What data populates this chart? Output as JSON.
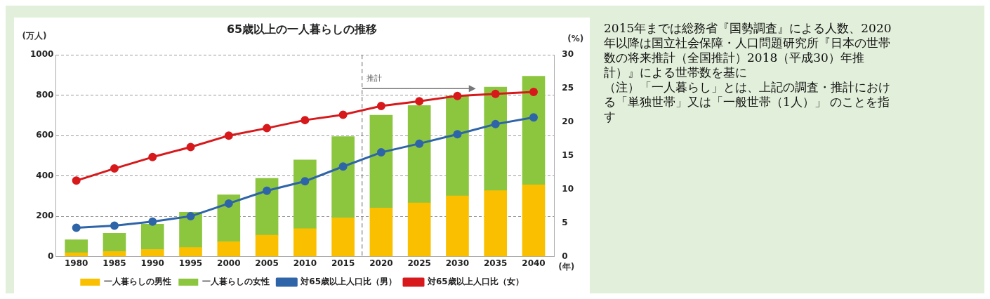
{
  "chart_data": {
    "type": "bar",
    "title": "65歳以上の一人暮らしの推移",
    "xlabel": "(年)",
    "ylabel": "(万人)",
    "y2label": "(%)",
    "x": [
      1980,
      1985,
      1990,
      1995,
      2000,
      2005,
      2010,
      2015,
      2020,
      2025,
      2030,
      2035,
      2040
    ],
    "xlim": [
      1977.3,
      2042.7
    ],
    "xticks": [
      1980,
      1985,
      1990,
      1995,
      2000,
      2005,
      2010,
      2015,
      2020,
      2025,
      2030,
      2035,
      2040
    ],
    "ylim": [
      0,
      1000
    ],
    "yticks": [
      0,
      200,
      400,
      600,
      800,
      1000
    ],
    "y2lim": [
      0,
      30
    ],
    "y2ticks": [
      0,
      5,
      10,
      15,
      20,
      25,
      30
    ],
    "stacked": true,
    "grid": "y",
    "legend": "bottom",
    "marker": "circle",
    "series": [
      {
        "name": "一人暮らしの男性",
        "color": "#fac000",
        "values": [
          19,
          25,
          35,
          45,
          74,
          106,
          138,
          192,
          241,
          266,
          301,
          327,
          356
        ]
      },
      {
        "name": "一人暮らしの女性",
        "color": "#8cc63f",
        "values": [
          65,
          91,
          126,
          175,
          232,
          282,
          341,
          403,
          460,
          483,
          496,
          513,
          538
        ]
      },
      {
        "name": "対65歳以上人口比（男）",
        "type": "line",
        "axis": "y2",
        "color": "#2e64a8",
        "values": [
          4.3,
          4.6,
          5.2,
          6.0,
          7.9,
          9.8,
          11.2,
          13.4,
          15.5,
          16.8,
          18.2,
          19.7,
          20.7
        ]
      },
      {
        "name": "対65歳以上人口比（女）",
        "type": "line",
        "axis": "y2",
        "color": "#d7191c",
        "values": [
          11.3,
          13.1,
          14.8,
          16.3,
          18.0,
          19.1,
          20.3,
          21.1,
          22.4,
          23.1,
          23.9,
          24.2,
          24.5
        ]
      }
    ],
    "ref_lines": [
      {
        "axis": "x",
        "value": 2017.5,
        "label": "推計",
        "color": "#666666",
        "line_style": "dashed"
      }
    ],
    "annotations": [
      "2015年までは総務省『国勢調査』による人数、2020年以降は国立社会保障・人口問題研究所『日本の世帯数の将来推計（全国推計）2018（平成30）年推計）』による世帯数を基に",
      "（注）「一人暮らし」とは、上記の調査・推計における「単独世帯」又は「一般世帯（1人）」 のことを指す"
    ]
  }
}
